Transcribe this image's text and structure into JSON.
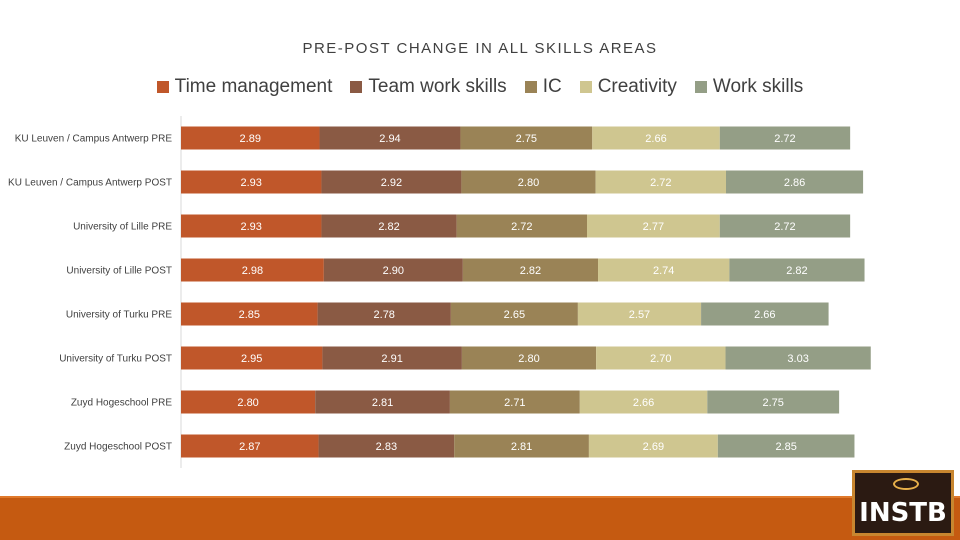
{
  "chart_data": {
    "type": "bar",
    "orientation": "horizontal",
    "stacked": true,
    "title": "PRE-POST CHANGE IN ALL SKILLS AREAS",
    "legend_position": "top",
    "categories": [
      "KU Leuven / Campus Antwerp PRE",
      "KU Leuven / Campus Antwerp POST",
      "University of Lille PRE",
      "University of Lille POST",
      "University of Turku PRE",
      "University of Turku POST",
      "Zuyd Hogeschool PRE",
      "Zuyd Hogeschool POST"
    ],
    "series": [
      {
        "name": "Time management",
        "color": "#c0572a",
        "values": [
          2.89,
          2.93,
          2.93,
          2.98,
          2.85,
          2.95,
          2.8,
          2.87
        ],
        "labels": [
          "2.89",
          "2.93",
          "2.93",
          "2.98",
          "2.85",
          "2.95",
          "2.80",
          "2.87"
        ]
      },
      {
        "name": "Team work skills",
        "color": "#8a5a44",
        "values": [
          2.94,
          2.92,
          2.82,
          2.9,
          2.78,
          2.91,
          2.81,
          2.83
        ],
        "labels": [
          "2.94",
          "2.92",
          "2.82",
          "2.90",
          "2.78",
          "2.91",
          "2.81",
          "2.83"
        ]
      },
      {
        "name": "IC",
        "color": "#9a8356",
        "values": [
          2.75,
          2.8,
          2.72,
          2.82,
          2.65,
          2.8,
          2.71,
          2.81
        ],
        "labels": [
          "2.75",
          "2.80",
          "2.72",
          "2.82",
          "2.65",
          "2.80",
          "2.71",
          "2.81"
        ]
      },
      {
        "name": "Creativity",
        "color": "#cfc690",
        "values": [
          2.66,
          2.72,
          2.77,
          2.74,
          2.57,
          2.7,
          2.66,
          2.69
        ],
        "labels": [
          "2.66",
          "2.72",
          "2.77",
          "2.74",
          "2.57",
          "2.70",
          "2.66",
          "2.69"
        ]
      },
      {
        "name": "Work skills",
        "color": "#949e86",
        "values": [
          2.72,
          2.86,
          2.72,
          2.82,
          2.66,
          3.03,
          2.75,
          2.85
        ],
        "labels": [
          "2.72",
          "2.86",
          "2.72",
          "2.82",
          "2.66",
          "3.03",
          "2.75",
          "2.85"
        ]
      }
    ],
    "xlim": [
      0,
      15
    ],
    "grid": false
  },
  "logo": {
    "text": "INSTB"
  }
}
